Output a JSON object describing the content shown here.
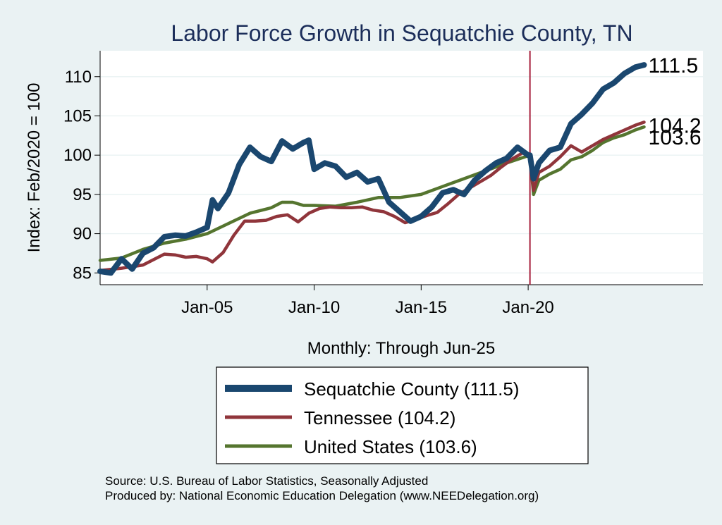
{
  "chart_data": {
    "type": "line",
    "title": "Labor Force Growth in Sequatchie  County, TN",
    "ylabel": "Index: Feb/2020 = 100",
    "xlabel": "Monthly: Through Jun-25",
    "xlim": [
      "2000-01",
      "2028-03"
    ],
    "ylim": [
      83.5,
      113.3
    ],
    "y_ticks": [
      85,
      90,
      95,
      100,
      105,
      110
    ],
    "x_ticks": [
      {
        "x": "2005-01",
        "label": "Jan-05"
      },
      {
        "x": "2010-01",
        "label": "Jan-10"
      },
      {
        "x": "2015-01",
        "label": "Jan-15"
      },
      {
        "x": "2020-01",
        "label": "Jan-20"
      }
    ],
    "reference_line": {
      "x": "2020-02",
      "color": "#a51d3a"
    },
    "grid": "horizontal",
    "series": [
      {
        "name": "Sequatchie  County (111.5)",
        "color": "#1a476f",
        "end_label": "111.5",
        "points": [
          [
            "2000-01",
            85.2
          ],
          [
            "2000-07",
            85.0
          ],
          [
            "2001-01",
            86.8
          ],
          [
            "2001-07",
            85.5
          ],
          [
            "2002-01",
            87.5
          ],
          [
            "2002-07",
            88.2
          ],
          [
            "2003-01",
            89.6
          ],
          [
            "2003-07",
            89.8
          ],
          [
            "2004-01",
            89.7
          ],
          [
            "2004-07",
            90.2
          ],
          [
            "2005-01",
            90.8
          ],
          [
            "2005-04",
            94.3
          ],
          [
            "2005-07",
            93.2
          ],
          [
            "2006-01",
            95.2
          ],
          [
            "2006-07",
            98.8
          ],
          [
            "2007-01",
            101.0
          ],
          [
            "2007-07",
            99.8
          ],
          [
            "2008-01",
            99.2
          ],
          [
            "2008-07",
            101.8
          ],
          [
            "2009-01",
            100.8
          ],
          [
            "2009-07",
            101.6
          ],
          [
            "2009-10",
            101.9
          ],
          [
            "2010-01",
            98.2
          ],
          [
            "2010-07",
            99.0
          ],
          [
            "2011-01",
            98.6
          ],
          [
            "2011-07",
            97.2
          ],
          [
            "2012-01",
            97.8
          ],
          [
            "2012-07",
            96.6
          ],
          [
            "2013-01",
            97.0
          ],
          [
            "2013-07",
            94.0
          ],
          [
            "2014-01",
            92.8
          ],
          [
            "2014-07",
            91.6
          ],
          [
            "2015-01",
            92.2
          ],
          [
            "2015-07",
            93.4
          ],
          [
            "2016-01",
            95.2
          ],
          [
            "2016-07",
            95.6
          ],
          [
            "2017-01",
            95.0
          ],
          [
            "2017-07",
            96.8
          ],
          [
            "2018-01",
            98.0
          ],
          [
            "2018-07",
            99.0
          ],
          [
            "2019-01",
            99.6
          ],
          [
            "2019-07",
            101.0
          ],
          [
            "2020-01",
            100.0
          ],
          [
            "2020-02",
            100.0
          ],
          [
            "2020-04",
            97.0
          ],
          [
            "2020-07",
            99.0
          ],
          [
            "2021-01",
            100.6
          ],
          [
            "2021-07",
            101.0
          ],
          [
            "2022-01",
            104.0
          ],
          [
            "2022-07",
            105.2
          ],
          [
            "2023-01",
            106.6
          ],
          [
            "2023-07",
            108.4
          ],
          [
            "2024-01",
            109.2
          ],
          [
            "2024-07",
            110.4
          ],
          [
            "2025-01",
            111.2
          ],
          [
            "2025-06",
            111.5
          ]
        ]
      },
      {
        "name": "Tennessee (104.2)",
        "color": "#90353b",
        "end_label": "104.2",
        "points": [
          [
            "2000-01",
            85.3
          ],
          [
            "2001-01",
            85.6
          ],
          [
            "2002-01",
            86.0
          ],
          [
            "2003-01",
            87.4
          ],
          [
            "2003-07",
            87.3
          ],
          [
            "2004-01",
            87.0
          ],
          [
            "2004-07",
            87.1
          ],
          [
            "2005-01",
            86.8
          ],
          [
            "2005-04",
            86.4
          ],
          [
            "2005-10",
            87.6
          ],
          [
            "2006-04",
            89.8
          ],
          [
            "2006-10",
            91.6
          ],
          [
            "2007-04",
            91.6
          ],
          [
            "2007-10",
            91.7
          ],
          [
            "2008-04",
            92.2
          ],
          [
            "2008-10",
            92.4
          ],
          [
            "2009-04",
            91.5
          ],
          [
            "2009-10",
            92.6
          ],
          [
            "2010-04",
            93.2
          ],
          [
            "2010-10",
            93.4
          ],
          [
            "2011-04",
            93.3
          ],
          [
            "2011-10",
            93.3
          ],
          [
            "2012-04",
            93.4
          ],
          [
            "2012-10",
            93.0
          ],
          [
            "2013-04",
            92.8
          ],
          [
            "2013-10",
            92.2
          ],
          [
            "2014-04",
            91.4
          ],
          [
            "2014-10",
            91.8
          ],
          [
            "2015-04",
            92.3
          ],
          [
            "2015-10",
            92.7
          ],
          [
            "2016-04",
            93.8
          ],
          [
            "2016-10",
            95.0
          ],
          [
            "2017-04",
            95.8
          ],
          [
            "2017-10",
            96.6
          ],
          [
            "2018-04",
            97.4
          ],
          [
            "2018-10",
            98.5
          ],
          [
            "2019-04",
            99.5
          ],
          [
            "2019-10",
            100.3
          ],
          [
            "2020-02",
            100.0
          ],
          [
            "2020-04",
            95.5
          ],
          [
            "2020-07",
            97.8
          ],
          [
            "2021-01",
            98.6
          ],
          [
            "2021-07",
            99.8
          ],
          [
            "2022-01",
            101.2
          ],
          [
            "2022-07",
            100.4
          ],
          [
            "2023-01",
            101.2
          ],
          [
            "2023-07",
            102.0
          ],
          [
            "2024-01",
            102.6
          ],
          [
            "2024-07",
            103.2
          ],
          [
            "2025-01",
            103.8
          ],
          [
            "2025-06",
            104.2
          ]
        ]
      },
      {
        "name": "United States (103.6)",
        "color": "#55752f",
        "end_label": "103.6",
        "points": [
          [
            "2000-01",
            86.6
          ],
          [
            "2001-01",
            86.9
          ],
          [
            "2002-01",
            88.0
          ],
          [
            "2003-01",
            88.8
          ],
          [
            "2004-01",
            89.3
          ],
          [
            "2005-01",
            90.0
          ],
          [
            "2006-01",
            91.3
          ],
          [
            "2007-01",
            92.6
          ],
          [
            "2008-01",
            93.3
          ],
          [
            "2008-07",
            94.0
          ],
          [
            "2009-01",
            94.0
          ],
          [
            "2009-07",
            93.6
          ],
          [
            "2010-01",
            93.6
          ],
          [
            "2011-01",
            93.5
          ],
          [
            "2012-01",
            94.0
          ],
          [
            "2013-01",
            94.6
          ],
          [
            "2014-01",
            94.6
          ],
          [
            "2015-01",
            95.0
          ],
          [
            "2016-01",
            96.0
          ],
          [
            "2017-01",
            97.0
          ],
          [
            "2018-01",
            98.0
          ],
          [
            "2019-01",
            99.0
          ],
          [
            "2020-02",
            100.0
          ],
          [
            "2020-04",
            95.0
          ],
          [
            "2020-07",
            96.8
          ],
          [
            "2021-01",
            97.6
          ],
          [
            "2021-07",
            98.2
          ],
          [
            "2022-01",
            99.4
          ],
          [
            "2022-07",
            99.8
          ],
          [
            "2023-01",
            100.6
          ],
          [
            "2023-07",
            101.6
          ],
          [
            "2024-01",
            102.2
          ],
          [
            "2024-07",
            102.6
          ],
          [
            "2025-01",
            103.2
          ],
          [
            "2025-06",
            103.6
          ]
        ]
      }
    ],
    "legend": {
      "placement": "bottom"
    },
    "notes": [
      "Source: U.S. Bureau of Labor Statistics, Seasonally Adjusted",
      "Produced by: National Economic Education Delegation (www.NEEDelegation.org)"
    ]
  }
}
